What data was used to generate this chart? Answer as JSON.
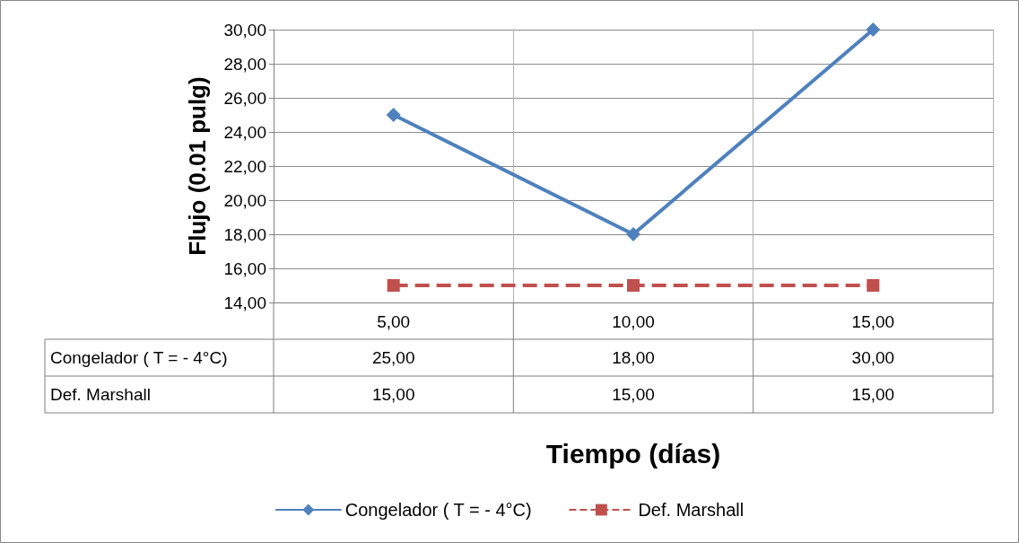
{
  "chart_data": {
    "type": "line",
    "xlabel": "Tiempo (días)",
    "ylabel": "Flujo (0.01 pulg)",
    "categories": [
      "5,00",
      "10,00",
      "15,00"
    ],
    "series": [
      {
        "name": "Congelador ( T = - 4°C)",
        "color": "#4f81bd",
        "values": [
          25,
          18,
          30
        ],
        "value_labels": [
          "25,00",
          "18,00",
          "30,00"
        ],
        "marker": "diamond",
        "line_style": "solid"
      },
      {
        "name": "Def. Marshall",
        "color": "#c0504d",
        "values": [
          15,
          15,
          15
        ],
        "value_labels": [
          "15,00",
          "15,00",
          "15,00"
        ],
        "marker": "square",
        "line_style": "dashed"
      }
    ],
    "ylim": [
      14,
      30
    ],
    "yticks": [
      {
        "value": 14,
        "label": "14,00"
      },
      {
        "value": 16,
        "label": "16,00"
      },
      {
        "value": 18,
        "label": "18,00"
      },
      {
        "value": 20,
        "label": "20,00"
      },
      {
        "value": 22,
        "label": "22,00"
      },
      {
        "value": 24,
        "label": "24,00"
      },
      {
        "value": 26,
        "label": "26,00"
      },
      {
        "value": 28,
        "label": "28,00"
      },
      {
        "value": 30,
        "label": "30,00"
      }
    ],
    "grid": true,
    "legend": "bottom"
  }
}
